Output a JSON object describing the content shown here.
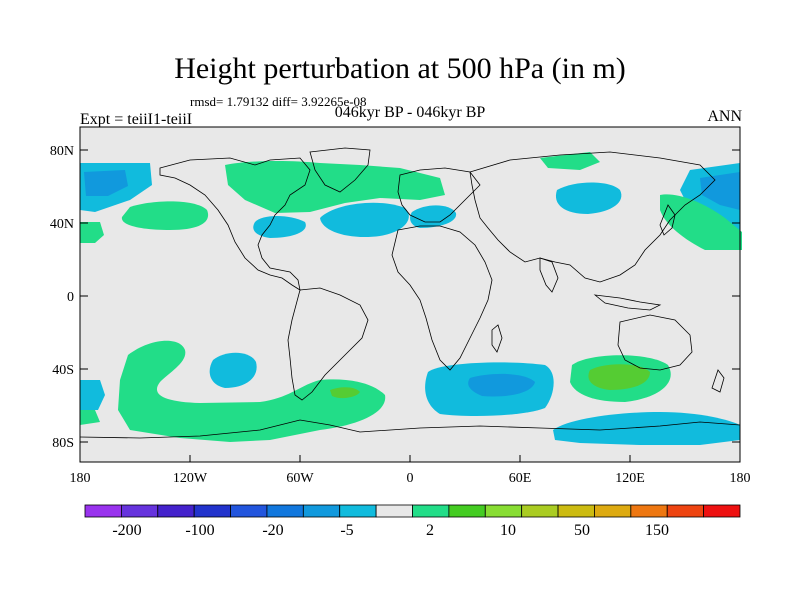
{
  "figure": {
    "title": "Height perturbation at 500 hPa (in m)",
    "stats_line": "rmsd= 1.79132 diff= 3.92265e-08",
    "experiment": "Expt = teiiI1-teiiI",
    "subtitle": "046kyr BP - 046kyr BP",
    "season": "ANN"
  },
  "axes": {
    "lat_ticks": [
      "80N",
      "40N",
      "0",
      "40S",
      "80S"
    ],
    "lon_ticks": [
      "180",
      "120W",
      "60W",
      "0",
      "60E",
      "120E",
      "180"
    ]
  },
  "colorbar": {
    "colors": [
      "#9933ee",
      "#6633dd",
      "#4422cc",
      "#2233cc",
      "#2255dd",
      "#1177dd",
      "#1199dd",
      "#11bbdd",
      "#e8e8e8",
      "#22dd88",
      "#44cc22",
      "#88dd33",
      "#aacc22",
      "#ccbb11",
      "#ddaa11",
      "#ee7711",
      "#ee4411",
      "#ee1111"
    ],
    "labels": [
      "-200",
      "-100",
      "-20",
      "-5",
      "2",
      "10",
      "50",
      "150"
    ]
  },
  "map_style": {
    "background": "#e8e8e8",
    "coast_color": "#000000",
    "positive_weak": "#22dd88",
    "positive_mid": "#55cc33",
    "negative_weak": "#11bbdd",
    "negative_mid": "#1199dd"
  }
}
